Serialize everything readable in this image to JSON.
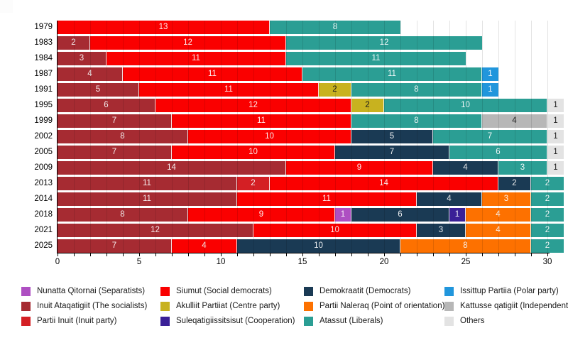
{
  "chart_data": {
    "type": "bar",
    "orientation": "horizontal",
    "stacked": true,
    "title": "",
    "xlabel": "",
    "ylabel": "",
    "xlim": [
      0,
      30
    ],
    "x_ticks": [
      0,
      5,
      10,
      15,
      20,
      25,
      30
    ],
    "grid": true,
    "legend_position": "bottom",
    "categories": [
      "1979",
      "1983",
      "1984",
      "1987",
      "1991",
      "1995",
      "1999",
      "2002",
      "2005",
      "2009",
      "2013",
      "2014",
      "2018",
      "2021",
      "2025"
    ],
    "parties": [
      {
        "id": "nunatta-qitornai",
        "label": "Nunatta Qitornai (Separatists)",
        "color": "#ae4fc2",
        "value_text": "light"
      },
      {
        "id": "inuit-ataqatigiit",
        "label": "Inuit Ataqatigiit (The socialists)",
        "color": "#a62b32",
        "value_text": "light"
      },
      {
        "id": "partii-inuit",
        "label": "Partii Inuit (Inuit party)",
        "color": "#d41f24",
        "value_text": "light"
      },
      {
        "id": "siumut",
        "label": "Siumut (Social democrats)",
        "color": "#fa0000",
        "value_text": "light"
      },
      {
        "id": "akulliit-partiiat",
        "label": "Akulliit Partiiat (Centre party)",
        "color": "#c8b21f",
        "value_text": "dark"
      },
      {
        "id": "suleqatigiissitsisut",
        "label": "Suleqatigiissitsisut (Cooperation)",
        "color": "#3a2097",
        "value_text": "light"
      },
      {
        "id": "demokraatit",
        "label": "Demokraatit (Democrats)",
        "color": "#1a3a54",
        "value_text": "light"
      },
      {
        "id": "partii-naleraq",
        "label": "Partii Naleraq (Point of orientation)",
        "color": "#fd7100",
        "value_text": "light"
      },
      {
        "id": "atassut",
        "label": "Atassut (Liberals)",
        "color": "#2b9e94",
        "value_text": "light"
      },
      {
        "id": "issittup-partiia",
        "label": "Issittup Partiia (Polar party)",
        "color": "#2196dc",
        "value_text": "light"
      },
      {
        "id": "kattusseqatigiit",
        "label": "Kattusse qatigiit (Independents)",
        "color": "#b7b7b7",
        "value_text": "dark"
      },
      {
        "id": "others",
        "label": "Others",
        "color": "#e3e3e3",
        "value_text": "dark"
      }
    ],
    "rows": [
      {
        "year": "1979",
        "segments": [
          [
            "siumut",
            13
          ],
          [
            "atassut",
            8
          ]
        ]
      },
      {
        "year": "1983",
        "segments": [
          [
            "inuit-ataqatigiit",
            2
          ],
          [
            "siumut",
            12
          ],
          [
            "atassut",
            12
          ]
        ]
      },
      {
        "year": "1984",
        "segments": [
          [
            "inuit-ataqatigiit",
            3
          ],
          [
            "siumut",
            11
          ],
          [
            "atassut",
            11
          ]
        ]
      },
      {
        "year": "1987",
        "segments": [
          [
            "inuit-ataqatigiit",
            4
          ],
          [
            "siumut",
            11
          ],
          [
            "atassut",
            11
          ],
          [
            "issittup-partiia",
            1
          ]
        ]
      },
      {
        "year": "1991",
        "segments": [
          [
            "inuit-ataqatigiit",
            5
          ],
          [
            "siumut",
            11
          ],
          [
            "akulliit-partiiat",
            2
          ],
          [
            "atassut",
            8
          ],
          [
            "issittup-partiia",
            1
          ]
        ]
      },
      {
        "year": "1995",
        "segments": [
          [
            "inuit-ataqatigiit",
            6
          ],
          [
            "siumut",
            12
          ],
          [
            "akulliit-partiiat",
            2
          ],
          [
            "atassut",
            10
          ],
          [
            "others",
            1
          ]
        ]
      },
      {
        "year": "1999",
        "segments": [
          [
            "inuit-ataqatigiit",
            7
          ],
          [
            "siumut",
            11
          ],
          [
            "atassut",
            8
          ],
          [
            "kattusseqatigiit",
            4
          ],
          [
            "others",
            1
          ]
        ]
      },
      {
        "year": "2002",
        "segments": [
          [
            "inuit-ataqatigiit",
            8
          ],
          [
            "siumut",
            10
          ],
          [
            "demokraatit",
            5
          ],
          [
            "atassut",
            7
          ],
          [
            "others",
            1
          ]
        ]
      },
      {
        "year": "2005",
        "segments": [
          [
            "inuit-ataqatigiit",
            7
          ],
          [
            "siumut",
            10
          ],
          [
            "demokraatit",
            7
          ],
          [
            "atassut",
            6
          ],
          [
            "others",
            1
          ]
        ]
      },
      {
        "year": "2009",
        "segments": [
          [
            "inuit-ataqatigiit",
            14
          ],
          [
            "siumut",
            9
          ],
          [
            "demokraatit",
            4
          ],
          [
            "atassut",
            3
          ],
          [
            "others",
            1
          ]
        ]
      },
      {
        "year": "2013",
        "segments": [
          [
            "inuit-ataqatigiit",
            11
          ],
          [
            "partii-inuit",
            2
          ],
          [
            "siumut",
            14
          ],
          [
            "demokraatit",
            2
          ],
          [
            "atassut",
            2
          ]
        ]
      },
      {
        "year": "2014",
        "segments": [
          [
            "inuit-ataqatigiit",
            11
          ],
          [
            "siumut",
            11
          ],
          [
            "demokraatit",
            4
          ],
          [
            "partii-naleraq",
            3
          ],
          [
            "atassut",
            2
          ]
        ]
      },
      {
        "year": "2018",
        "segments": [
          [
            "inuit-ataqatigiit",
            8
          ],
          [
            "siumut",
            9
          ],
          [
            "nunatta-qitornai",
            1
          ],
          [
            "demokraatit",
            6
          ],
          [
            "suleqatigiissitsisut",
            1
          ],
          [
            "partii-naleraq",
            4
          ],
          [
            "atassut",
            2
          ]
        ]
      },
      {
        "year": "2021",
        "segments": [
          [
            "inuit-ataqatigiit",
            12
          ],
          [
            "siumut",
            10
          ],
          [
            "demokraatit",
            3
          ],
          [
            "partii-naleraq",
            4
          ],
          [
            "atassut",
            2
          ]
        ]
      },
      {
        "year": "2025",
        "segments": [
          [
            "inuit-ataqatigiit",
            7
          ],
          [
            "siumut",
            4
          ],
          [
            "demokraatit",
            10
          ],
          [
            "partii-naleraq",
            8
          ],
          [
            "atassut",
            2
          ]
        ]
      }
    ],
    "legend_columns": [
      [
        0,
        1,
        2
      ],
      [
        3,
        4,
        5
      ],
      [
        6,
        7,
        8
      ],
      [
        9,
        10,
        11
      ]
    ]
  }
}
